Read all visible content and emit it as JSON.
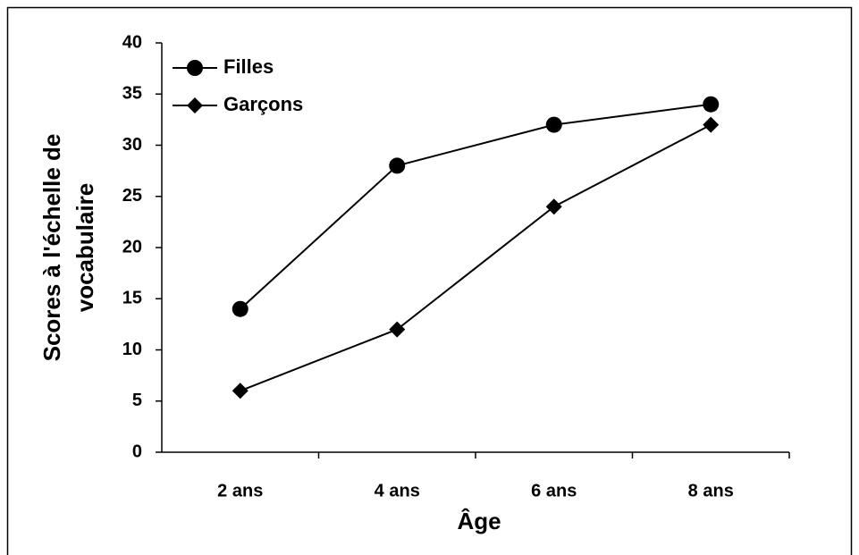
{
  "chart_data": {
    "type": "line",
    "categories": [
      "2 ans",
      "4 ans",
      "6 ans",
      "8 ans"
    ],
    "series": [
      {
        "name": "Filles",
        "color": "#000000",
        "marker": "circle",
        "values": [
          14,
          28,
          32,
          34
        ]
      },
      {
        "name": "Garçons",
        "color": "#000000",
        "marker": "diamond",
        "values": [
          6,
          12,
          24,
          32
        ]
      }
    ],
    "xlabel": "Âge",
    "ylabel": [
      "Scores à l'échelle de",
      "vocabulaire"
    ],
    "ylim": [
      0,
      40
    ],
    "yticks": [
      0,
      5,
      10,
      15,
      20,
      25,
      30,
      35,
      40
    ],
    "legend": "upper left",
    "grid": false
  }
}
